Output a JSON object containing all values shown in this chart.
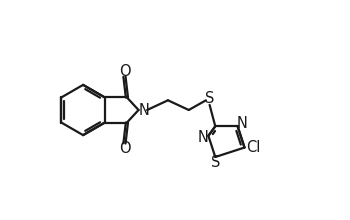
{
  "bg_color": "#ffffff",
  "line_color": "#1a1a1a",
  "line_width": 1.6,
  "font_size": 10.5,
  "figsize": [
    3.5,
    2.2
  ],
  "dpi": 100,
  "xlim": [
    0,
    10
  ],
  "ylim": [
    0,
    7
  ]
}
